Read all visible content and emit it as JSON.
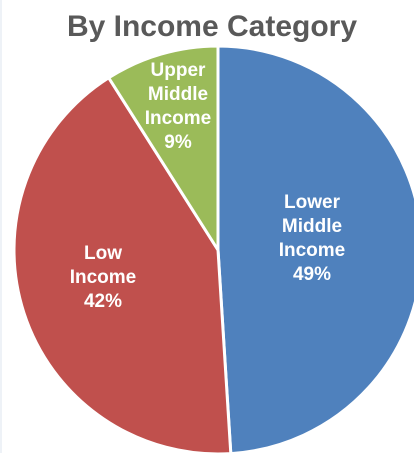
{
  "chart_data": {
    "type": "pie",
    "title": "By Income Category",
    "slices": [
      {
        "name": "Lower Middle Income",
        "label_lines": [
          "Lower",
          "Middle",
          "Income",
          "49%"
        ],
        "value": 49,
        "color": "#4f81bd"
      },
      {
        "name": "Low Income",
        "label_lines": [
          "Low",
          "Income",
          "42%"
        ],
        "value": 42,
        "color": "#c0504d"
      },
      {
        "name": "Upper Middle Income",
        "label_lines": [
          "Upper",
          "Middle",
          "Income",
          "9%"
        ],
        "value": 9,
        "color": "#9bbb59"
      }
    ],
    "legend": "none",
    "start_angle": "12 o'clock",
    "direction": "clockwise"
  }
}
